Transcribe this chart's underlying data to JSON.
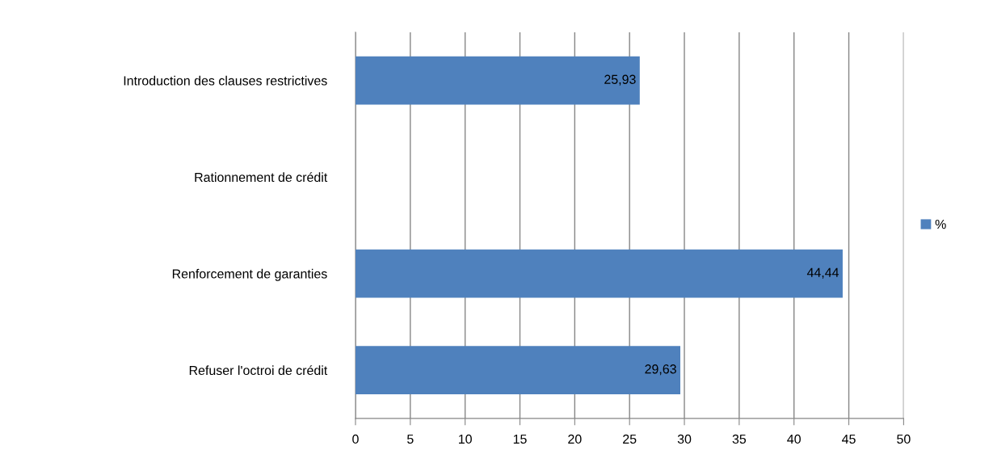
{
  "chart_data": {
    "type": "bar",
    "orientation": "horizontal",
    "categories": [
      "Introduction des clauses restrictives",
      "Rationnement de crédit",
      "Renforcement de garanties",
      "Refuser l'octroi de crédit"
    ],
    "series": [
      {
        "name": "%",
        "color": "#4f81bd",
        "values": [
          25.93,
          null,
          44.44,
          29.63
        ],
        "value_labels": [
          "25,93",
          null,
          "44,44",
          "29,63"
        ]
      }
    ],
    "xlim": [
      0,
      50
    ],
    "xticks": [
      0,
      5,
      10,
      15,
      20,
      25,
      30,
      35,
      40,
      45,
      50
    ],
    "grid": "x",
    "legend": "right"
  }
}
